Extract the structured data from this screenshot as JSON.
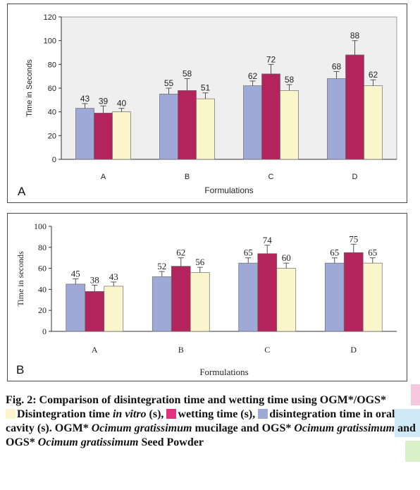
{
  "colors": {
    "disintegration_oral": "#9fa9d8",
    "wetting": "#b3245c",
    "disintegration_vitro": "#fbf5cc",
    "legend_wetting_swatch": "#e4317f",
    "legend_vitro_swatch": "#fbf5cc",
    "legend_oral_swatch": "#9fa9d8"
  },
  "chart_data": [
    {
      "type": "bar",
      "panel_label": "A",
      "categories": [
        "A",
        "B",
        "C",
        "D"
      ],
      "series": [
        {
          "values": [
            43,
            55,
            62,
            68
          ],
          "errors": [
            4,
            5,
            4,
            6
          ]
        },
        {
          "values": [
            39,
            58,
            72,
            88
          ],
          "errors": [
            6,
            10,
            8,
            12
          ]
        },
        {
          "values": [
            40,
            51,
            58,
            62
          ],
          "errors": [
            3,
            5,
            5,
            5
          ]
        }
      ],
      "data_labels": [
        [
          "43",
          "55",
          "62",
          "68"
        ],
        [
          "39",
          "58",
          "72",
          "88"
        ],
        [
          "40",
          "51",
          "58",
          "62"
        ]
      ],
      "xlabel": "Formulations",
      "ylabel": "Time in Seconds",
      "ylim": [
        0,
        120
      ],
      "yticks": [
        "0",
        "20",
        "40",
        "60",
        "80",
        "100",
        "120"
      ],
      "grid": false
    },
    {
      "type": "bar",
      "panel_label": "B",
      "categories": [
        "A",
        "B",
        "C",
        "D"
      ],
      "series": [
        {
          "values": [
            45,
            52,
            65,
            65
          ],
          "errors": [
            5,
            5,
            5,
            5
          ]
        },
        {
          "values": [
            38,
            62,
            74,
            75
          ],
          "errors": [
            6,
            8,
            8,
            8
          ]
        },
        {
          "values": [
            43,
            56,
            60,
            65
          ],
          "errors": [
            4,
            5,
            5,
            5
          ]
        }
      ],
      "data_labels": [
        [
          "45",
          "52",
          "65",
          "65"
        ],
        [
          "38",
          "62",
          "74",
          "75"
        ],
        [
          "43",
          "56",
          "60",
          "65"
        ]
      ],
      "xlabel": "Formulations",
      "ylabel": "Time in seconds",
      "ylim": [
        0,
        100
      ],
      "yticks": [
        "0",
        "20",
        "40",
        "60",
        "80",
        "100"
      ],
      "grid": false
    }
  ],
  "caption": {
    "title": "Fig. 2: Comparison of disintegration time and wetting time using OGM*/OGS*",
    "legend_vitro_a": "Disintegration time ",
    "legend_vitro_b": "in vitro",
    "legend_vitro_c": " (s),",
    "legend_wetting": "wetting time (s),",
    "legend_oral_a": "disintegration",
    "legend_oral_b": "time in oral cavity (s). OGM* ",
    "species1": "Ocimum gratissimum",
    "mid1": " mucilage and OGS* ",
    "species2": "Ocimum gratissimum",
    "mid2": " and OGS* ",
    "species3": "Ocimum gratissimum",
    "tail": " Seed Powder"
  }
}
